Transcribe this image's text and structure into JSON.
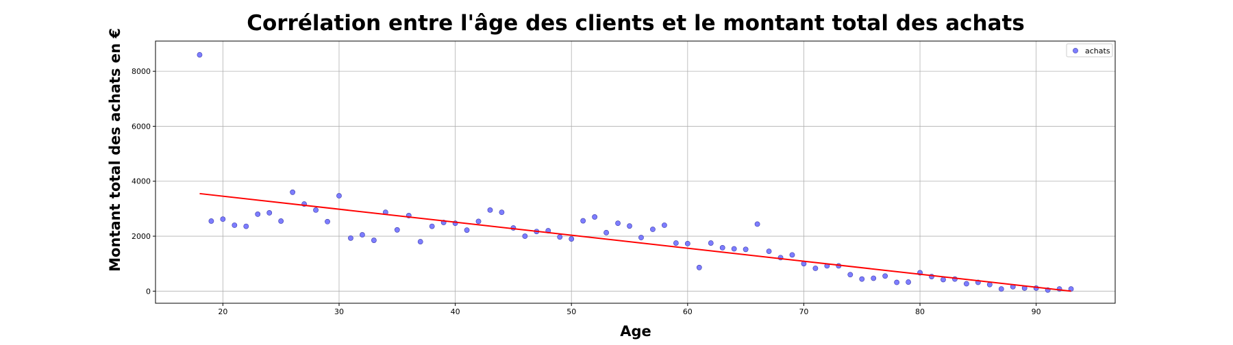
{
  "chart_data": {
    "type": "scatter",
    "title": "Corrélation entre l'âge des clients et le montant total des achats",
    "xlabel": "Age",
    "ylabel": "Montant total des achats en €",
    "xlim": [
      14.2,
      96.8
    ],
    "ylim": [
      -440,
      9100
    ],
    "xticks": [
      20,
      30,
      40,
      50,
      60,
      70,
      80,
      90
    ],
    "yticks": [
      0,
      2000,
      4000,
      6000,
      8000
    ],
    "grid": true,
    "legend": {
      "position": "top-right",
      "entries": [
        "achats"
      ]
    },
    "series": [
      {
        "name": "achats",
        "marker_color": "#6666ff",
        "x": [
          18,
          19,
          20,
          21,
          22,
          23,
          24,
          25,
          26,
          27,
          28,
          29,
          30,
          31,
          32,
          33,
          34,
          35,
          36,
          37,
          38,
          39,
          40,
          41,
          42,
          43,
          44,
          45,
          46,
          47,
          48,
          49,
          50,
          51,
          52,
          53,
          54,
          55,
          56,
          57,
          58,
          59,
          60,
          61,
          62,
          63,
          64,
          65,
          66,
          67,
          68,
          69,
          70,
          71,
          72,
          73,
          74,
          75,
          76,
          77,
          78,
          79,
          80,
          81,
          82,
          83,
          84,
          85,
          86,
          87,
          88,
          89,
          90,
          91,
          92,
          93
        ],
        "y": [
          8600,
          2550,
          2620,
          2400,
          2360,
          2800,
          2850,
          2550,
          3600,
          3170,
          2950,
          2530,
          3470,
          1930,
          2050,
          1850,
          2870,
          2230,
          2750,
          1800,
          2360,
          2500,
          2470,
          2220,
          2540,
          2950,
          2870,
          2300,
          2000,
          2170,
          2200,
          1970,
          1900,
          2560,
          2700,
          2130,
          2470,
          2370,
          1950,
          2250,
          2400,
          1750,
          1730,
          860,
          1750,
          1580,
          1540,
          1520,
          2440,
          1450,
          1220,
          1320,
          1000,
          830,
          920,
          920,
          600,
          440,
          470,
          550,
          320,
          330,
          670,
          530,
          420,
          440,
          270,
          320,
          240,
          80,
          160,
          110,
          110,
          40,
          80,
          80
        ]
      }
    ],
    "regression_line": {
      "color": "#ff0000",
      "x": [
        18,
        93
      ],
      "y": [
        3550,
        0
      ]
    }
  }
}
